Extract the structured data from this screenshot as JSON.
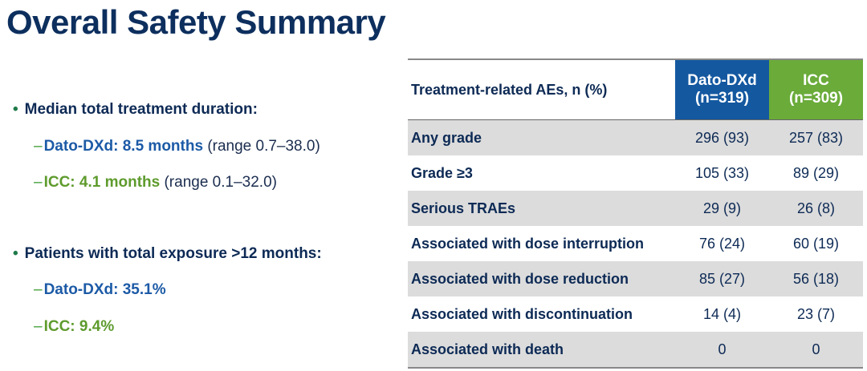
{
  "title": "Overall Safety Summary",
  "bullets": [
    {
      "text": "Median total treatment duration:",
      "subs": [
        {
          "label": "Dato-DXd: 8.5 months",
          "extra": "(range 0.7–38.0)"
        },
        {
          "label": "ICC: 4.1 months",
          "extra": "(range 0.1–32.0)"
        }
      ]
    },
    {
      "text": "Patients with total exposure >12 months:",
      "subs": [
        {
          "label": "Dato-DXd: 35.1%"
        },
        {
          "label": "ICC: 9.4%"
        }
      ]
    }
  ],
  "table": {
    "header": {
      "label": "Treatment-related AEs, n (%)",
      "col1": "Dato-DXd",
      "col1_n": "(n=319)",
      "col2": "ICC",
      "col2_n": "(n=309)"
    },
    "rows": [
      {
        "label": "Any grade",
        "a": "296 (93)",
        "b": "257 (83)"
      },
      {
        "label": "Grade ≥3",
        "a": "105 (33)",
        "b": "89 (29)"
      },
      {
        "label": "Serious TRAEs",
        "a": "29 (9)",
        "b": "26 (8)"
      },
      {
        "label": "Associated with dose interruption",
        "a": "76 (24)",
        "b": "60 (19)"
      },
      {
        "label": "Associated with dose reduction",
        "a": "85 (27)",
        "b": "56 (18)"
      },
      {
        "label": "Associated with discontinuation",
        "a": "14 (4)",
        "b": "23 (7)"
      },
      {
        "label": "Associated with death",
        "a": "0",
        "b": "0"
      }
    ]
  },
  "colors": {
    "dato": "#1458a0",
    "icc": "#6aab3a",
    "title": "#0d2f5e"
  }
}
